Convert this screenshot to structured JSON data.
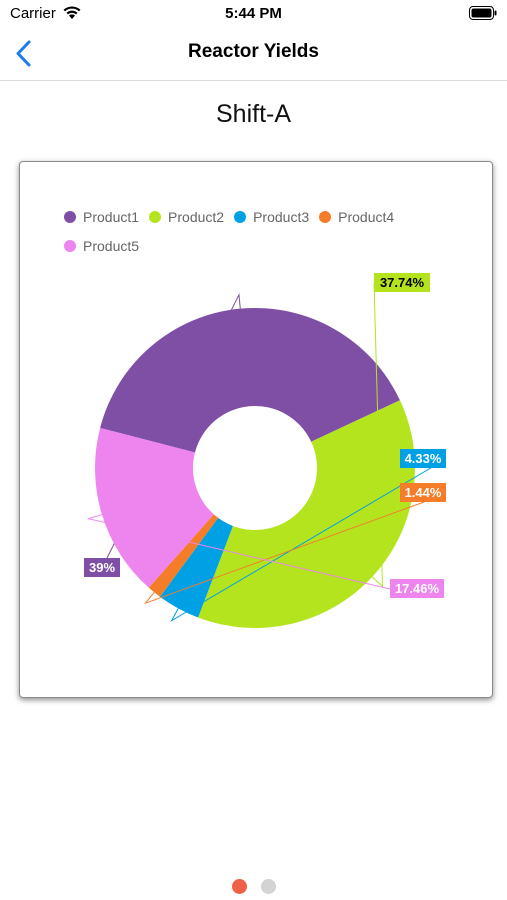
{
  "status_bar": {
    "carrier": "Carrier",
    "time": "5:44 PM"
  },
  "nav": {
    "title": "Reactor Yields",
    "back_icon": "chevron-left-icon",
    "accent": "#1a7cf0"
  },
  "page_title": "Shift-A",
  "chart_data": {
    "type": "pie",
    "donut": true,
    "title": "",
    "legend_position": "top-left",
    "slices": [
      {
        "name": "Product1",
        "value": 39,
        "label": "39%",
        "color": "#7f4fa6",
        "label_text_color": "#ffffff"
      },
      {
        "name": "Product2",
        "value": 37.74,
        "label": "37.74%",
        "color": "#b3e41e",
        "label_text_color": "#000000"
      },
      {
        "name": "Product3",
        "value": 4.33,
        "label": "4.33%",
        "color": "#00a0e4",
        "label_text_color": "#ffffff"
      },
      {
        "name": "Product4",
        "value": 1.44,
        "label": "1.44%",
        "color": "#f57d2a",
        "label_text_color": "#ffffff"
      },
      {
        "name": "Product5",
        "value": 17.46,
        "label": "17.46%",
        "color": "#ee85ee",
        "label_text_color": "#ffffff"
      }
    ]
  },
  "pager": {
    "pages": 2,
    "current": 0,
    "active_color": "#f06048",
    "inactive_color": "#d3d3d3"
  }
}
